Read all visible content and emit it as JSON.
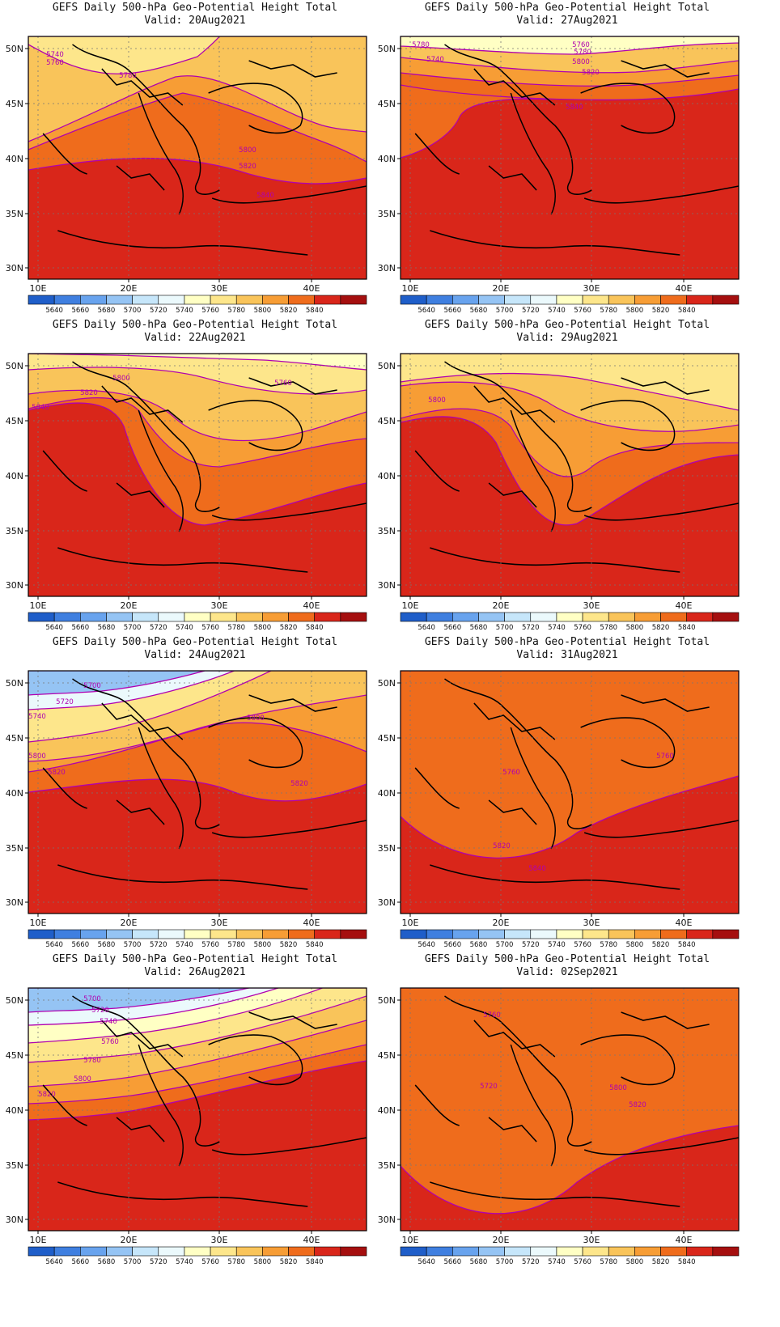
{
  "colors": [
    "#1f5ec9",
    "#3f7fe0",
    "#68a3ee",
    "#95c4f4",
    "#c6e6fa",
    "#ebf9fc",
    "#ffffc4",
    "#fde68b",
    "#f9c45a",
    "#f79d35",
    "#ef6c1c",
    "#d9261a",
    "#a50f0f"
  ],
  "colorbar_labels": [
    "5640",
    "5660",
    "5680",
    "5700",
    "5720",
    "5740",
    "5760",
    "5780",
    "5800",
    "5820",
    "5840"
  ],
  "lat_labels": [
    "50N",
    "45N",
    "40N",
    "35N",
    "30N"
  ],
  "lon_labels": [
    "10E",
    "20E",
    "30E",
    "40E"
  ],
  "panels": [
    {
      "title": "GEFS Daily 500-hPa Geo-Potential Height Total",
      "valid": "Valid: 20Aug2021",
      "base": 11,
      "bands": [
        [
          7,
          "M0,10 C30,25 60,40 100,45 C140,50 180,40 230,25 C250,10 260,0 260,0 L0,0Z"
        ],
        [
          8,
          "M0,130 C80,100 140,70 200,50 C260,40 330,90 400,110 C420,115 440,116 460,118 L460,0 L0,0Z"
        ],
        [
          9,
          "M0,140 C80,110 150,85 210,70 C270,80 340,110 400,130 C430,140 450,150 460,155 L460,0 L0,0Z"
        ],
        [
          10,
          "M0,165 C100,150 200,140 300,170 C380,190 430,180 460,175 L460,0 L0,0Z"
        ],
        [
          7,
          "M215,70 C230,20 330,15 390,55 C410,80 400,120 350,140 C290,155 230,130 215,100 Z"
        ],
        [
          6,
          "M240,70 C260,40 320,40 355,65 C370,90 350,110 320,120 C280,125 240,110 240,90 Z"
        ],
        [
          5,
          "M265,75 C285,55 320,55 335,72 C340,90 320,105 295,105 C275,103 262,92 265,75 Z"
        ]
      ],
      "labels": [
        [
          "5740",
          0,
          20,
          "5740"
        ],
        [
          "5760",
          1,
          0,
          "5760"
        ]
      ],
      "contour_labels": [
        "5740",
        "5760",
        "5780",
        "5800",
        "5820",
        "5840"
      ]
    },
    {
      "title": "GEFS Daily 500-hPa Geo-Potential Height Total",
      "valid": "Valid: 27Aug2021",
      "base": 11,
      "bands": [
        [
          6,
          "M0,0 L460,0 L460,8 C360,10 300,20 240,22 C160,22 80,15 0,12 Z"
        ],
        [
          8,
          "M0,26 C100,36 220,48 320,44 C380,40 420,34 460,30 L460,0 L0,0Z"
        ],
        [
          9,
          "M0,45 C100,55 220,65 320,60 C380,56 420,52 460,48 L460,0 L0,0Z"
        ],
        [
          10,
          "M0,60 C90,75 220,80 320,78 C380,76 430,70 460,65 L460,0 L0,0Z"
        ],
        [
          10,
          "M0,60 L0,150 C40,140 70,120 80,100 C90,80 150,75 200,78 L200,60Z"
        ]
      ],
      "labels": [
        [
          "5780",
          0,
          0,
          "5780"
        ],
        [
          "5740",
          1,
          0,
          "5740"
        ]
      ],
      "contour_labels": [
        "5780",
        "5740",
        "5760",
        "5780",
        "5800",
        "5820",
        "5840"
      ]
    },
    {
      "title": "GEFS Daily 500-hPa Geo-Potential Height Total",
      "valid": "Valid: 22Aug2021",
      "base": 11,
      "bands": [
        [
          6,
          "M0,0 L460,0 L460,20 C400,15 360,10 320,8 C260,6 200,4 120,2 L0,0Z"
        ],
        [
          7,
          "M0,20 C80,15 180,15 240,30 C320,50 400,55 460,45 L460,0 L0,0Z"
        ],
        [
          8,
          "M0,50 C80,40 160,45 200,80 C250,120 330,110 400,90 C430,80 450,75 460,72 L460,0 L0,0Z"
        ],
        [
          9,
          "M0,68 C60,55 120,45 150,70 C180,110 210,140 260,140 C330,130 400,110 460,105 L460,0 L0,0Z"
        ],
        [
          10,
          "M0,70 C50,60 110,50 130,90 C150,150 190,210 240,212 C320,200 400,170 460,160 L460,0 L0,0Z"
        ]
      ],
      "labels": [],
      "contour_labels": [
        "5800",
        "5760",
        "5820",
        "5840"
      ]
    },
    {
      "title": "GEFS Daily 500-hPa Geo-Potential Height Total",
      "valid": "Valid: 29Aug2021",
      "base": 11,
      "bands": [
        [
          7,
          "M0,0 L460,0 L460,70 C380,55 300,40 240,30 C160,20 80,25 0,35 Z"
        ],
        [
          6,
          "M220,0 L460,0 L460,60 C400,50 320,35 280,20 Z"
        ],
        [
          5,
          "M290,0 L460,0 L460,50 C420,40 360,25 330,12 Z"
        ],
        [
          3,
          "M330,0 L460,0 L460,40 C430,30 380,18 360,6 Z"
        ],
        [
          1,
          "M370,0 L460,0 L460,25 C440,18 400,10 390,2 Z"
        ],
        [
          8,
          "M0,40 C80,30 150,35 200,60 C250,90 330,100 400,95 C430,92 450,90 460,88 L460,0 L0,0Z"
        ],
        [
          9,
          "M0,80 C60,65 120,60 150,90 C180,140 220,170 260,140 C300,110 400,110 460,110 L460,0 L0,0Z"
        ],
        [
          10,
          "M0,85 C50,75 100,70 130,110 C170,190 200,220 240,210 C300,180 360,130 460,125 L460,0 L0,0Z"
        ]
      ],
      "labels": [],
      "contour_labels": [
        "5800"
      ]
    },
    {
      "title": "GEFS Daily 500-hPa Geo-Potential Height Total",
      "valid": "Valid: 24Aug2021",
      "base": 11,
      "bands": [
        [
          3,
          "M0,0 L240,0 C200,10 150,20 100,25 C60,28 30,28 0,30 Z"
        ],
        [
          5,
          "M0,0 L280,0 C230,18 160,35 100,42 C60,46 30,46 0,48 Z"
        ],
        [
          7,
          "M0,0 L330,0 C260,30 180,60 100,75 C60,82 30,85 0,88 Z"
        ],
        [
          8,
          "M0,0 L460,0 L460,30 C400,40 300,50 200,80 C120,100 60,110 0,112 Z"
        ],
        [
          9,
          "M0,0 L460,0 L460,100 C380,70 300,55 240,70 C160,90 80,115 0,125 Z"
        ],
        [
          10,
          "M0,0 L460,0 L460,140 C400,160 340,170 280,150 C200,120 100,140 0,150 Z"
        ]
      ],
      "labels": [],
      "contour_labels": [
        "5700",
        "5720",
        "5740",
        "5800",
        "5800",
        "5820",
        "5820"
      ]
    },
    {
      "title": "GEFS Daily 500-hPa Geo-Potential Height Total",
      "valid": "Valid: 31Aug2021",
      "base": 11,
      "bands": [
        [
          10,
          "M0,0 L460,0 L460,130 C380,150 300,170 240,200 C180,240 80,250 0,180 Z"
        ],
        [
          9,
          "M0,0 L460,0 L460,120 C380,140 300,160 240,190 C180,225 80,230 0,160 Z"
        ],
        [
          8,
          "M0,0 L460,0 L460,110 C380,125 300,145 240,170 C180,200 80,205 0,140 Z"
        ],
        [
          7,
          "M0,0 L460,0 L460,95 C380,110 300,130 240,150 C180,175 80,170 0,110 Z"
        ],
        [
          6,
          "M0,0 L460,0 L460,85 C380,95 300,110 240,125 C180,140 100,130 0,80 Z"
        ],
        [
          5,
          "M30,0 L460,0 L460,70 C380,80 320,85 280,95 C220,110 140,110 80,70 C40,40 30,20 30,0 Z"
        ],
        [
          4,
          "M40,0 L460,0 L460,55 C400,45 330,30 280,10 L200,0 C190,30 160,70 110,70 C60,65 40,30 40,0 Z"
        ],
        [
          3,
          "M55,20 C65,0 120,-2 150,15 C170,35 160,60 120,65 C80,65 50,45 55,20 Z M360,0 L460,0 L460,40 C420,30 380,15 360,0 Z"
        ],
        [
          1,
          "M390,0 L460,0 L460,25 C430,18 405,8 390,0 Z"
        ]
      ],
      "labels": [],
      "contour_labels": [
        "5760",
        "5760",
        "5820",
        "5840"
      ]
    },
    {
      "title": "GEFS Daily 500-hPa Geo-Potential Height Total",
      "valid": "Valid: 26Aug2021",
      "base": 11,
      "bands": [
        [
          3,
          "M0,0 L300,0 C250,10 180,20 120,25 C70,28 30,28 0,30 Z"
        ],
        [
          5,
          "M0,0 L340,0 C270,20 190,35 120,40 C70,44 30,45 0,46 Z"
        ],
        [
          6,
          "M0,0 L400,0 C310,30 210,50 130,58 C70,64 30,66 0,68 Z"
        ],
        [
          7,
          "M0,0 L460,0 L460,10 C360,40 240,70 140,82 C80,88 30,90 0,92 Z"
        ],
        [
          8,
          "M0,0 L460,0 L460,40 C360,65 240,95 140,110 C80,118 30,120 0,122 Z"
        ],
        [
          9,
          "M0,0 L460,0 L460,70 C360,90 240,120 140,133 C80,140 30,142 0,143 Z"
        ],
        [
          10,
          "M0,0 L460,0 L460,90 C360,105 240,135 140,152 C80,160 30,162 0,163 Z"
        ]
      ],
      "labels": [],
      "contour_labels": [
        "5700",
        "5720",
        "5740",
        "5760",
        "5780",
        "5800",
        "5820"
      ]
    },
    {
      "title": "GEFS Daily 500-hPa Geo-Potential Height Total",
      "valid": "Valid: 02Sep2021",
      "base": 11,
      "bands": [
        [
          10,
          "M0,0 L460,0 L460,170 C380,180 300,200 240,240 C180,290 80,300 0,220 Z"
        ],
        [
          9,
          "M0,0 L460,0 L460,150 C380,160 300,180 240,215 C180,265 80,270 0,200 Z"
        ],
        [
          8,
          "M0,0 L460,0 L460,130 C380,140 300,160 240,190 C180,235 60,240 0,170 Z"
        ],
        [
          7,
          "M0,0 L460,0 L460,115 C380,120 300,140 240,165 C200,200 100,200 30,150 C0,120 0,90 0,80 Z"
        ],
        [
          6,
          "M30,0 L460,0 L460,100 C380,100 320,110 280,125 C230,150 150,155 90,120 C40,90 30,40 30,0 Z"
        ],
        [
          5,
          "M60,40 C80,10 160,5 190,40 C210,70 190,110 140,115 C90,115 55,80 60,40 Z M320,0 L460,0 L460,90 C420,70 360,40 320,0 Z"
        ],
        [
          4,
          "M80,50 C95,30 150,28 170,50 C180,75 165,95 130,97 C100,97 75,75 80,50 Z M350,0 L460,0 L460,70 C430,55 380,30 350,0 Z"
        ],
        [
          3,
          "M380,0 L460,0 L460,55 C440,45 400,20 380,0 Z"
        ],
        [
          1,
          "M410,0 L460,0 L460,40 C445,30 420,15 410,0 Z"
        ]
      ],
      "labels": [],
      "contour_labels": [
        "5760",
        "5720",
        "5800",
        "5820"
      ]
    }
  ]
}
